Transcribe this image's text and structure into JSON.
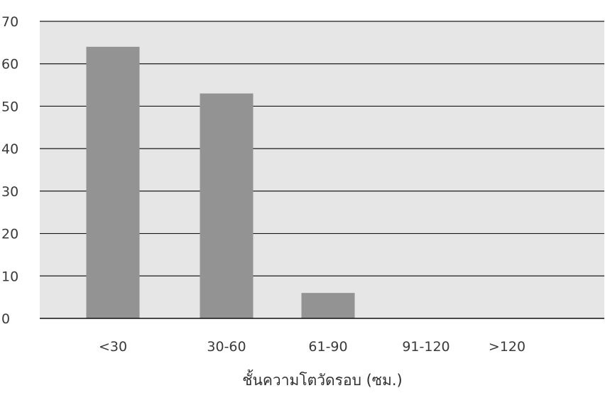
{
  "chart_data": {
    "type": "bar",
    "title": "",
    "xlabel": "ชั้นความโตวัดรอบ (ซม.)",
    "ylabel": "",
    "categories": [
      "<30",
      "30-60",
      "61-90",
      "91-120",
      ">120"
    ],
    "values": [
      64,
      53,
      6,
      0,
      0
    ],
    "ylim": [
      0,
      70
    ],
    "yticks": [
      0,
      10,
      20,
      30,
      40,
      50,
      60,
      70
    ],
    "grid": true,
    "legend": "none",
    "colors": {
      "bar": "#939393",
      "plot_background": "#e6e6e6",
      "gridline": "#1a1a1a",
      "text": "#3a3a3a"
    }
  }
}
